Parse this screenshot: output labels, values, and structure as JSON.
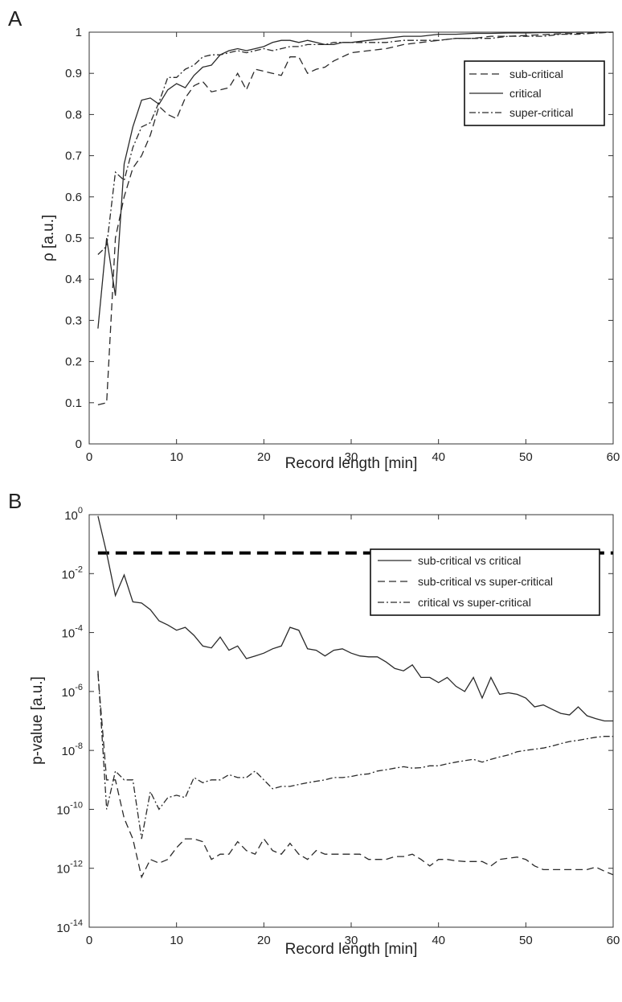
{
  "chart_data": [
    {
      "panel_letter": "A",
      "type": "line",
      "xlabel": "Record length [min]",
      "ylabel": "ρ [a.u.]",
      "xlim": [
        0,
        60
      ],
      "ylim": [
        0,
        1
      ],
      "xticks": [
        0,
        10,
        20,
        30,
        40,
        50,
        60
      ],
      "xtick_labels": [
        "0",
        "10",
        "20",
        "30",
        "40",
        "50",
        "60"
      ],
      "yticks": [
        0,
        0.1,
        0.2,
        0.3,
        0.4,
        0.5,
        0.6,
        0.7,
        0.8,
        0.9,
        1
      ],
      "ytick_labels": [
        "0",
        "0.1",
        "0.2",
        "0.3",
        "0.4",
        "0.5",
        "0.6",
        "0.7",
        "0.8",
        "0.9",
        "1"
      ],
      "grid": false,
      "legend_position": "top-right",
      "series": [
        {
          "name": "sub-critical",
          "style": "dashed",
          "x": [
            1,
            2,
            3,
            4,
            5,
            6,
            7,
            8,
            9,
            10,
            11,
            12,
            13,
            14,
            15,
            16,
            17,
            18,
            19,
            20,
            21,
            22,
            23,
            24,
            25,
            26,
            27,
            28,
            29,
            30,
            32,
            34,
            36,
            38,
            40,
            42,
            44,
            46,
            48,
            50,
            52,
            54,
            56,
            58,
            60
          ],
          "y": [
            0.095,
            0.1,
            0.5,
            0.6,
            0.67,
            0.7,
            0.75,
            0.82,
            0.8,
            0.79,
            0.84,
            0.87,
            0.88,
            0.855,
            0.86,
            0.865,
            0.9,
            0.86,
            0.91,
            0.905,
            0.9,
            0.895,
            0.94,
            0.94,
            0.9,
            0.91,
            0.915,
            0.93,
            0.94,
            0.95,
            0.955,
            0.96,
            0.97,
            0.975,
            0.98,
            0.985,
            0.985,
            0.99,
            0.99,
            0.992,
            0.994,
            0.996,
            0.997,
            0.998,
            1.0
          ]
        },
        {
          "name": "critical",
          "style": "solid",
          "x": [
            1,
            2,
            3,
            4,
            5,
            6,
            7,
            8,
            9,
            10,
            11,
            12,
            13,
            14,
            15,
            16,
            17,
            18,
            19,
            20,
            21,
            22,
            23,
            24,
            25,
            26,
            27,
            28,
            29,
            30,
            32,
            34,
            36,
            38,
            40,
            42,
            44,
            46,
            48,
            50,
            52,
            54,
            56,
            58,
            60
          ],
          "y": [
            0.28,
            0.5,
            0.36,
            0.68,
            0.77,
            0.835,
            0.84,
            0.825,
            0.86,
            0.875,
            0.865,
            0.895,
            0.915,
            0.92,
            0.945,
            0.955,
            0.96,
            0.955,
            0.96,
            0.965,
            0.975,
            0.98,
            0.98,
            0.975,
            0.98,
            0.975,
            0.97,
            0.97,
            0.975,
            0.975,
            0.98,
            0.985,
            0.99,
            0.99,
            0.995,
            0.995,
            0.997,
            0.997,
            0.998,
            0.998,
            0.999,
            0.999,
            1.0,
            1.0,
            1.0
          ]
        },
        {
          "name": "super-critical",
          "style": "dash-dot",
          "x": [
            1,
            2,
            3,
            4,
            5,
            6,
            7,
            8,
            9,
            10,
            11,
            12,
            13,
            14,
            15,
            16,
            17,
            18,
            19,
            20,
            21,
            22,
            23,
            24,
            25,
            26,
            27,
            28,
            29,
            30,
            32,
            34,
            36,
            38,
            40,
            42,
            44,
            46,
            48,
            50,
            52,
            54,
            56,
            58,
            60
          ],
          "y": [
            0.46,
            0.48,
            0.66,
            0.64,
            0.72,
            0.77,
            0.78,
            0.83,
            0.89,
            0.89,
            0.91,
            0.92,
            0.94,
            0.945,
            0.945,
            0.95,
            0.955,
            0.95,
            0.955,
            0.96,
            0.955,
            0.96,
            0.965,
            0.965,
            0.97,
            0.97,
            0.97,
            0.975,
            0.975,
            0.975,
            0.975,
            0.975,
            0.98,
            0.98,
            0.98,
            0.985,
            0.985,
            0.985,
            0.99,
            0.99,
            0.99,
            0.995,
            0.995,
            0.998,
            1.0
          ]
        }
      ]
    },
    {
      "panel_letter": "B",
      "type": "line",
      "yscale": "log",
      "xlabel": "Record length [min]",
      "ylabel": "p-value [a.u.]",
      "xlim": [
        0,
        60
      ],
      "ylim": [
        1e-14,
        1
      ],
      "xticks": [
        0,
        10,
        20,
        30,
        40,
        50,
        60
      ],
      "xtick_labels": [
        "0",
        "10",
        "20",
        "30",
        "40",
        "50",
        "60"
      ],
      "ytick_exponents": [
        0,
        -2,
        -4,
        -6,
        -8,
        -10,
        -12,
        -14
      ],
      "ytick_base": "10",
      "grid": false,
      "legend_position": "top-right",
      "threshold": {
        "value": 0.05,
        "style": "thick-dashed"
      },
      "series": [
        {
          "name": "sub-critical vs critical",
          "style": "solid",
          "x": [
            1,
            2,
            3,
            4,
            5,
            6,
            7,
            8,
            9,
            10,
            11,
            12,
            13,
            14,
            15,
            16,
            17,
            18,
            19,
            20,
            21,
            22,
            23,
            24,
            25,
            26,
            27,
            28,
            29,
            30,
            31,
            32,
            33,
            34,
            35,
            36,
            37,
            38,
            39,
            40,
            41,
            42,
            43,
            44,
            45,
            46,
            47,
            48,
            49,
            50,
            51,
            52,
            53,
            54,
            55,
            56,
            57,
            58,
            59,
            60
          ],
          "y": [
            0.9,
            0.05,
            0.0018,
            0.009,
            0.0011,
            0.001,
            0.0006,
            0.00025,
            0.00018,
            0.00012,
            0.00015,
            8e-05,
            3.5e-05,
            3e-05,
            7e-05,
            2.5e-05,
            3.5e-05,
            1.3e-05,
            1.6e-05,
            2e-05,
            2.8e-05,
            3.5e-05,
            0.00015,
            0.00012,
            2.8e-05,
            2.5e-05,
            1.6e-05,
            2.5e-05,
            2.8e-05,
            2e-05,
            1.6e-05,
            1.5e-05,
            1.5e-05,
            1e-05,
            6e-06,
            5e-06,
            8e-06,
            3e-06,
            3e-06,
            2e-06,
            3e-06,
            1.5e-06,
            1e-06,
            3e-06,
            6e-07,
            3e-06,
            8e-07,
            9e-07,
            8e-07,
            6e-07,
            3e-07,
            3.5e-07,
            2.5e-07,
            1.8e-07,
            1.6e-07,
            3e-07,
            1.5e-07,
            1.2e-07,
            1e-07,
            1e-07
          ]
        },
        {
          "name": "sub-critical vs super-critical",
          "style": "dashed",
          "x": [
            1,
            2,
            3,
            4,
            5,
            6,
            7,
            8,
            9,
            10,
            11,
            12,
            13,
            14,
            15,
            16,
            17,
            18,
            19,
            20,
            21,
            22,
            23,
            24,
            25,
            26,
            27,
            28,
            29,
            30,
            31,
            32,
            33,
            34,
            35,
            36,
            37,
            38,
            39,
            40,
            41,
            42,
            43,
            44,
            45,
            46,
            47,
            48,
            49,
            50,
            51,
            52,
            53,
            54,
            55,
            56,
            57,
            58,
            59,
            60
          ],
          "y": [
            4e-06,
            1e-09,
            1e-09,
            5e-11,
            1e-11,
            5e-13,
            2e-12,
            1.5e-12,
            2e-12,
            5e-12,
            1e-11,
            1e-11,
            8e-12,
            2e-12,
            3e-12,
            3e-12,
            8e-12,
            4e-12,
            3e-12,
            1e-11,
            4e-12,
            3e-12,
            7e-12,
            3e-12,
            2e-12,
            4e-12,
            3e-12,
            3e-12,
            3e-12,
            3e-12,
            3e-12,
            2e-12,
            2e-12,
            2e-12,
            2.5e-12,
            2.5e-12,
            3e-12,
            2e-12,
            1.2e-12,
            2e-12,
            2e-12,
            1.8e-12,
            1.7e-12,
            1.7e-12,
            1.7e-12,
            1.2e-12,
            2e-12,
            2.2e-12,
            2.4e-12,
            2e-12,
            1.2e-12,
            9e-13,
            9e-13,
            9e-13,
            9e-13,
            9e-13,
            9e-13,
            1.1e-12,
            8e-13,
            6e-13
          ]
        },
        {
          "name": "critical vs super-critical",
          "style": "dash-dot",
          "x": [
            1,
            2,
            3,
            4,
            5,
            6,
            7,
            8,
            9,
            10,
            11,
            12,
            13,
            14,
            15,
            16,
            17,
            18,
            19,
            20,
            21,
            22,
            23,
            24,
            25,
            26,
            27,
            28,
            29,
            30,
            31,
            32,
            33,
            34,
            35,
            36,
            37,
            38,
            39,
            40,
            41,
            42,
            43,
            44,
            45,
            46,
            47,
            48,
            49,
            50,
            51,
            52,
            53,
            54,
            55,
            56,
            57,
            58,
            59,
            60
          ],
          "y": [
            5e-06,
            1e-10,
            2e-09,
            1e-09,
            1e-09,
            1e-11,
            4e-10,
            1e-10,
            2.5e-10,
            3e-10,
            2.5e-10,
            1.2e-09,
            8e-10,
            1e-09,
            1e-09,
            1.5e-09,
            1.2e-09,
            1.2e-09,
            2e-09,
            1e-09,
            5e-10,
            6e-10,
            6e-10,
            7e-10,
            8e-10,
            9e-10,
            1e-09,
            1.2e-09,
            1.2e-09,
            1.3e-09,
            1.5e-09,
            1.6e-09,
            2e-09,
            2.2e-09,
            2.5e-09,
            2.8e-09,
            2.5e-09,
            2.6e-09,
            3e-09,
            3e-09,
            3.5e-09,
            4e-09,
            4.5e-09,
            5e-09,
            4e-09,
            5e-09,
            6e-09,
            7e-09,
            9e-09,
            1e-08,
            1.1e-08,
            1.2e-08,
            1.4e-08,
            1.7e-08,
            2e-08,
            2.2e-08,
            2.5e-08,
            2.8e-08,
            3e-08,
            3e-08
          ]
        }
      ]
    }
  ]
}
